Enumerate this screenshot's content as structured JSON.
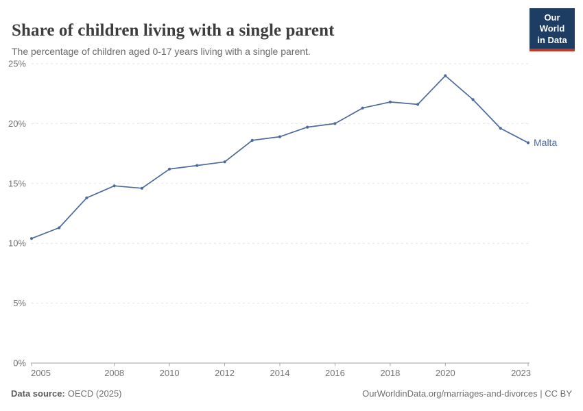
{
  "header": {
    "title": "Share of children living with a single parent",
    "subtitle": "The percentage of children aged 0-17 years living with a single parent.",
    "logo": {
      "line1": "Our World",
      "line2": "in Data",
      "bg_color": "#1d3d63",
      "accent_color": "#c0392b"
    }
  },
  "chart_data": {
    "type": "line",
    "title": "Share of children living with a single parent",
    "xlabel": "",
    "ylabel": "",
    "x": [
      2005,
      2006,
      2007,
      2008,
      2009,
      2010,
      2011,
      2012,
      2013,
      2014,
      2015,
      2016,
      2017,
      2018,
      2019,
      2020,
      2021,
      2022,
      2023
    ],
    "series": [
      {
        "name": "Malta",
        "color": "#4c6a9c",
        "values": [
          10.4,
          11.3,
          13.8,
          14.8,
          14.6,
          16.2,
          16.5,
          16.8,
          18.6,
          18.9,
          19.7,
          20.0,
          21.3,
          21.8,
          21.6,
          24.0,
          22.0,
          19.6,
          18.4
        ]
      }
    ],
    "xlim": [
      2005,
      2023
    ],
    "ylim": [
      0,
      25
    ],
    "xticks": [
      2005,
      2008,
      2010,
      2012,
      2014,
      2016,
      2018,
      2020,
      2023
    ],
    "yticks": [
      0,
      5,
      10,
      15,
      20,
      25
    ],
    "ytick_suffix": "%",
    "grid": "horizontal-dashed",
    "legend_position": "end-of-line-label",
    "colors": {
      "grid": "#e2e2e2",
      "axis": "#a3a3a3",
      "tick_text": "#737373"
    }
  },
  "footer": {
    "source_label": "Data source:",
    "source_value": "OECD (2025)",
    "credit": "OurWorldinData.org/marriages-and-divorces | CC BY"
  }
}
